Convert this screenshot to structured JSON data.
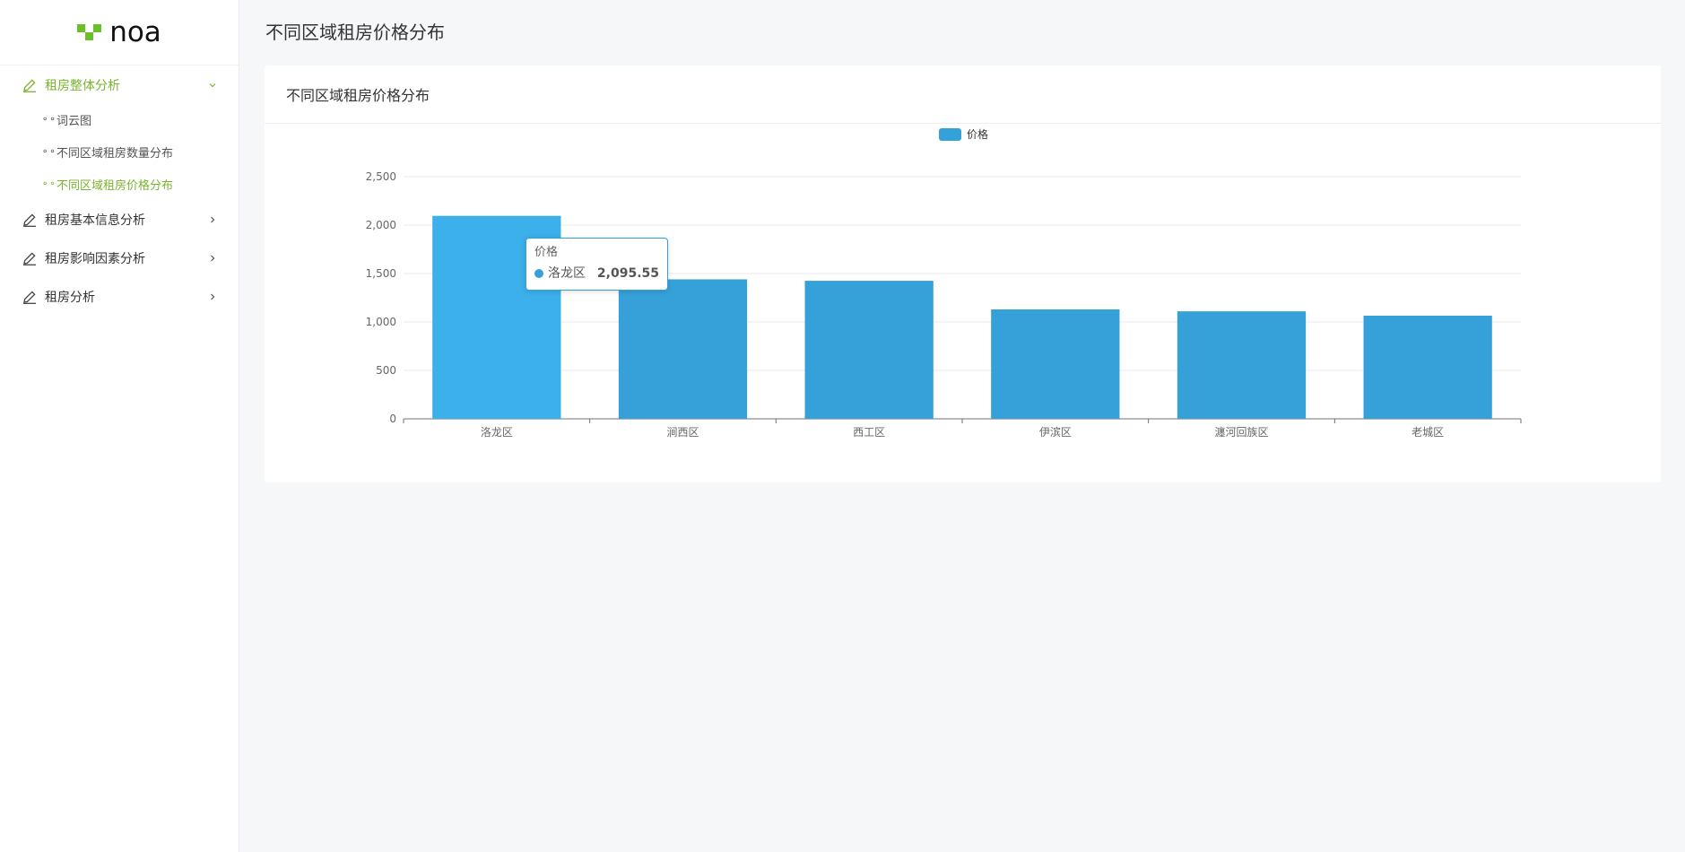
{
  "brand": {
    "logo_text": "noa",
    "accent": "#7ab32e",
    "logo_green": "#6bbf2a"
  },
  "sidebar": {
    "groups": [
      {
        "label": "租房整体分析",
        "icon": "pencil-icon",
        "expanded": true,
        "active": true,
        "items": [
          {
            "label": "词云图",
            "active": false
          },
          {
            "label": "不同区域租房数量分布",
            "active": false
          },
          {
            "label": "不同区域租房价格分布",
            "active": true
          }
        ]
      },
      {
        "label": "租房基本信息分析",
        "icon": "pencil-icon",
        "expanded": false,
        "active": false,
        "items": []
      },
      {
        "label": "租房影响因素分析",
        "icon": "pencil-icon",
        "expanded": false,
        "active": false,
        "items": []
      },
      {
        "label": "租房分析",
        "icon": "pencil-icon",
        "expanded": false,
        "active": false,
        "items": []
      }
    ]
  },
  "page": {
    "title": "不同区域租房价格分布"
  },
  "card": {
    "title": "不同区域租房价格分布"
  },
  "chart_data": {
    "type": "bar",
    "categories": [
      "洛龙区",
      "涧西区",
      "西工区",
      "伊滨区",
      "瀍河回族区",
      "老城区"
    ],
    "series": [
      {
        "name": "价格",
        "values": [
          2095.55,
          1440,
          1425,
          1130,
          1110,
          1065
        ],
        "color": "#36a1d9"
      }
    ],
    "ylim": [
      0,
      2500
    ],
    "yticks": [
      0,
      500,
      1000,
      1500,
      2000,
      2500
    ],
    "ytick_labels": [
      "0",
      "500",
      "1,000",
      "1,500",
      "2,000",
      "2,500"
    ],
    "legend": "top-center",
    "grid": true,
    "highlight_color": "#3cb0ea",
    "highlight_index": 0
  },
  "tooltip": {
    "title": "价格",
    "name": "洛龙区",
    "value": "2,095.55"
  }
}
